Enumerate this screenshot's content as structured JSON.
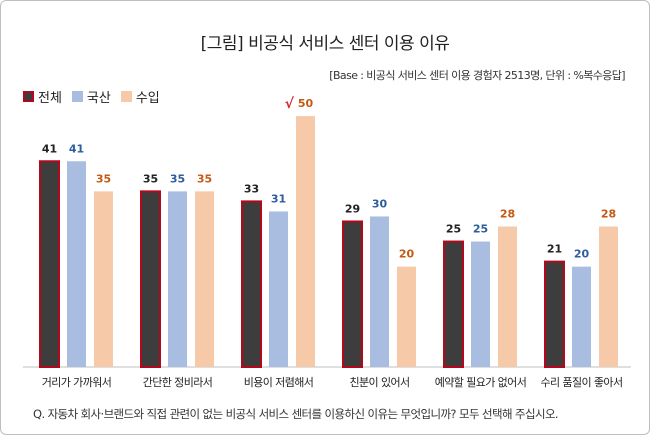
{
  "title": "[그림] 비공식 서비스 센터 이용 이유",
  "base_note": "[Base : 비공식 서비스 센터 이용 경험자 2513명, 단위 : %복수응답]",
  "question": "Q. 자동차 회사·브랜드와 직접 관련이 없는 비공식 서비스 센터를 이용하신 이유는 무엇입니까? 모두 선택해 주십시오.",
  "colors": {
    "total_fill": "#3d3d3d",
    "total_border": "#b2081a",
    "domestic": "#a8bde0",
    "import": "#f6c9a9",
    "label_total": "#222222",
    "label_domestic": "#2e5d9e",
    "label_import": "#c65911",
    "checkmark": "#d9262f"
  },
  "chart_data": {
    "type": "bar",
    "categories": [
      "거리가 가까워서",
      "간단한 정비라서",
      "비용이 저렴해서",
      "친분이 있어서",
      "예약할 필요가 없어서",
      "수리 품질이 좋아서"
    ],
    "series": [
      {
        "name": "전체",
        "values": [
          41,
          35,
          33,
          29,
          25,
          21
        ]
      },
      {
        "name": "국산",
        "values": [
          41,
          35,
          31,
          30,
          25,
          20
        ]
      },
      {
        "name": "수입",
        "values": [
          35,
          35,
          50,
          20,
          28,
          28
        ]
      }
    ],
    "highlight": {
      "series": "수입",
      "category": "비용이 저렴해서",
      "mark": "√"
    },
    "ylim": [
      0,
      55
    ],
    "legend_position": "top-left",
    "grid": false
  }
}
